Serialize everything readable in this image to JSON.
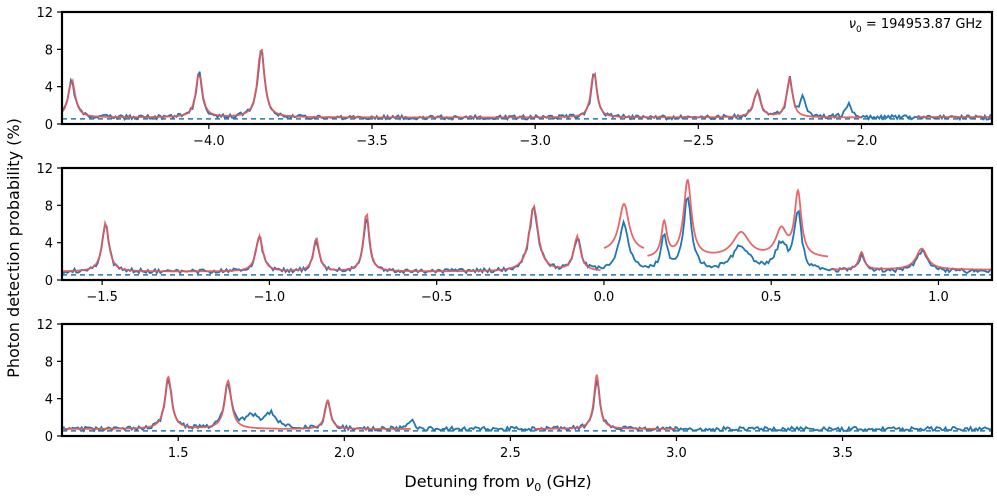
{
  "chart_data": {
    "type": "line",
    "shared_ylabel": "Photon detection probability (%)",
    "shared_xlabel": "Detuning from ν0 (GHz)",
    "xlabel_prefix": "Detuning from ",
    "xlabel_symbol": "ν",
    "xlabel_subscript": "0",
    "xlabel_suffix": " (GHz)",
    "annotation": {
      "symbol": "ν",
      "subscript": "0",
      "text": " = 194953.87 GHz"
    },
    "colors": {
      "data": "#1f77b4",
      "fit": "#e8555a",
      "background": "#1f77b4",
      "frame": "#000000"
    },
    "panels": [
      {
        "xlim": [
          -4.45,
          -1.6
        ],
        "ylim": [
          0,
          12
        ],
        "xticks": [
          -4.0,
          -3.5,
          -3.0,
          -2.5,
          -2.0
        ],
        "xtick_labels": [
          "−4.0",
          "−3.5",
          "−3.0",
          "−2.5",
          "−2.0"
        ],
        "yticks": [
          0,
          4,
          8,
          12
        ],
        "ytick_labels": [
          "0",
          "4",
          "8",
          "12"
        ],
        "background_level": 0.55,
        "base_level": 0.7,
        "peaks": [
          {
            "x": -4.42,
            "height": 4.0,
            "width": 0.012
          },
          {
            "x": -4.03,
            "height": 4.8,
            "width": 0.011
          },
          {
            "x": -3.84,
            "height": 7.4,
            "width": 0.012
          },
          {
            "x": -2.82,
            "height": 5.0,
            "width": 0.01
          },
          {
            "x": -2.32,
            "height": 2.8,
            "width": 0.012
          },
          {
            "x": -2.22,
            "height": 4.2,
            "width": 0.01
          },
          {
            "x": -2.18,
            "height": 2.0,
            "width": 0.01
          },
          {
            "x": -2.04,
            "height": 1.5,
            "width": 0.01
          }
        ],
        "fit_segments": [
          {
            "from": -4.45,
            "to": -2.0,
            "level": 0.7,
            "peaks": [
              0,
              1,
              2,
              3,
              4,
              5
            ]
          },
          {
            "from": -1.83,
            "to": -1.6,
            "level": 0.75,
            "peaks": []
          }
        ]
      },
      {
        "xlim": [
          -1.62,
          1.16
        ],
        "ylim": [
          0,
          12
        ],
        "xticks": [
          -1.5,
          -1.0,
          -0.5,
          0.0,
          0.5,
          1.0
        ],
        "xtick_labels": [
          "−1.5",
          "−1.0",
          "−0.5",
          "0.0",
          "0.5",
          "1.0"
        ],
        "yticks": [
          0,
          4,
          8,
          12
        ],
        "ytick_labels": [
          "0",
          "4",
          "8",
          "12"
        ],
        "background_level": 0.55,
        "base_level": 0.9,
        "peaks": [
          {
            "x": -1.49,
            "height": 5.1,
            "width": 0.012
          },
          {
            "x": -1.03,
            "height": 3.7,
            "width": 0.012
          },
          {
            "x": -0.86,
            "height": 3.5,
            "width": 0.01
          },
          {
            "x": -0.71,
            "height": 6.2,
            "width": 0.01
          },
          {
            "x": -0.21,
            "height": 6.8,
            "width": 0.016
          },
          {
            "x": -0.08,
            "height": 3.6,
            "width": 0.012
          },
          {
            "x": 0.06,
            "height": 5.0,
            "width": 0.018
          },
          {
            "x": 0.18,
            "height": 3.6,
            "width": 0.01
          },
          {
            "x": 0.25,
            "height": 8.0,
            "width": 0.014
          },
          {
            "x": 0.41,
            "height": 2.6,
            "width": 0.03
          },
          {
            "x": 0.53,
            "height": 2.8,
            "width": 0.02
          },
          {
            "x": 0.58,
            "height": 6.6,
            "width": 0.012
          },
          {
            "x": 0.77,
            "height": 1.8,
            "width": 0.01
          },
          {
            "x": 0.95,
            "height": 2.2,
            "width": 0.02
          }
        ],
        "fit_segments": [
          {
            "from": -1.62,
            "to": -0.01,
            "level": 0.9,
            "peaks": [
              0,
              1,
              2,
              3,
              4,
              5
            ]
          },
          {
            "from": 0.0,
            "to": 0.12,
            "level": 3.0,
            "peaks": [
              6
            ]
          },
          {
            "from": 0.13,
            "to": 0.67,
            "level": 2.3,
            "peaks": [
              7,
              8,
              9,
              10,
              11
            ]
          },
          {
            "from": 0.68,
            "to": 1.16,
            "level": 1.1,
            "peaks": [
              12,
              13
            ]
          }
        ]
      },
      {
        "xlim": [
          1.15,
          3.95
        ],
        "ylim": [
          0,
          12
        ],
        "xticks": [
          1.5,
          2.0,
          2.5,
          3.0,
          3.5
        ],
        "xtick_labels": [
          "1.5",
          "2.0",
          "2.5",
          "3.0",
          "3.5"
        ],
        "yticks": [
          0,
          4,
          8,
          12
        ],
        "ytick_labels": [
          "0",
          "4",
          "8",
          "12"
        ],
        "background_level": 0.55,
        "base_level": 0.75,
        "peaks": [
          {
            "x": 1.47,
            "height": 5.4,
            "width": 0.012
          },
          {
            "x": 1.65,
            "height": 5.0,
            "width": 0.012
          },
          {
            "x": 1.95,
            "height": 3.0,
            "width": 0.01
          },
          {
            "x": 2.76,
            "height": 5.6,
            "width": 0.01
          },
          {
            "x": 1.72,
            "height": 1.3,
            "width": 0.03
          },
          {
            "x": 1.78,
            "height": 1.5,
            "width": 0.02
          },
          {
            "x": 2.2,
            "height": 1.0,
            "width": 0.01
          }
        ],
        "fit_segments": [
          {
            "from": 1.15,
            "to": 1.8,
            "level": 0.75,
            "peaks": [
              0,
              1
            ]
          },
          {
            "from": 1.8,
            "to": 2.2,
            "level": 0.75,
            "peaks": [
              2
            ]
          },
          {
            "from": 2.57,
            "to": 3.0,
            "level": 0.75,
            "peaks": [
              3
            ]
          }
        ]
      }
    ]
  }
}
